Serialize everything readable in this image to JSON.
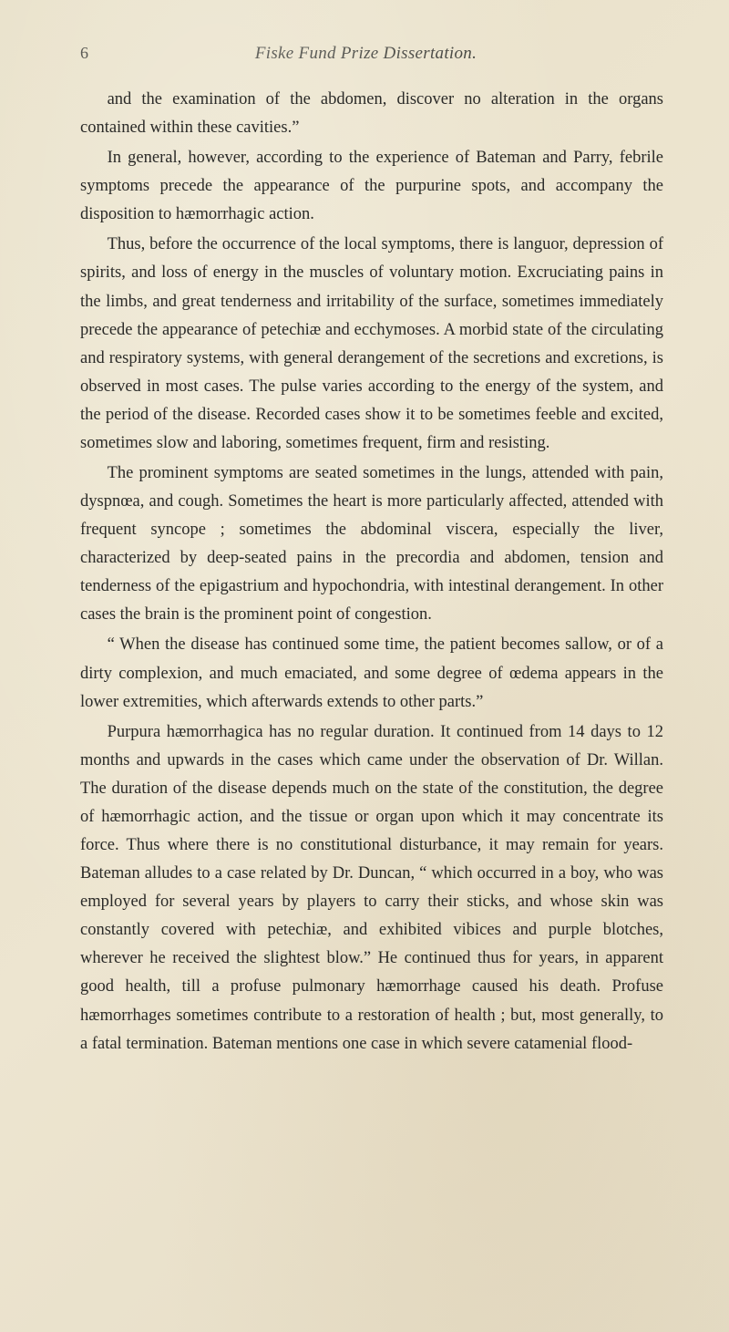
{
  "page": {
    "number": "6",
    "running_title": "Fiske Fund Prize Dissertation.",
    "background_color": "#e8e0c8",
    "text_color": "#2a2a28",
    "font_family": "Georgia, serif",
    "body_fontsize": 18.5,
    "title_fontsize": 19,
    "line_height": 1.68
  },
  "paragraphs": [
    "and the examination of the abdomen, discover no alteration in the organs contained within these cavities.”",
    "In general, however, according to the experience of Bateman and Parry, febrile symptoms precede the appearance of the purpurine spots, and accompany the disposition to hæmorrhagic action.",
    "Thus, before the occurrence of the local symptoms, there is languor, depression of spirits, and loss of energy in the muscles of voluntary motion. Excruciating pains in the limbs, and great tenderness and irritability of the surface, sometimes immediately precede the appearance of petechiæ and ecchymoses. A morbid state of the circulating and respiratory systems, with general derangement of the secretions and excretions, is observed in most cases. The pulse varies according to the energy of the system, and the period of the disease. Recorded cases show it to be sometimes feeble and excited, sometimes slow and laboring, sometimes frequent, firm and resisting.",
    "The prominent symptoms are seated sometimes in the lungs, attended with pain, dyspnœa, and cough. Sometimes the heart is more particularly affected, attended with frequent syncope ; sometimes the abdominal viscera, especially the liver, characterized by deep-seated pains in the precordia and abdomen, tension and tenderness of the epigastrium and hypochondria, with intestinal derangement. In other cases the brain is the prominent point of congestion.",
    "“ When the disease has continued some time, the patient becomes sallow, or of a dirty complexion, and much emaciated, and some degree of œdema appears in the lower extremities, which afterwards extends to other parts.”",
    "Purpura hæmorrhagica has no regular duration. It continued from 14 days to 12 months and upwards in the cases which came under the observation of Dr. Willan. The duration of the disease depends much on the state of the constitution, the degree of hæmorrhagic action, and the tissue or organ upon which it may concentrate its force. Thus where there is no constitutional disturbance, it may remain for years. Bateman alludes to a case related by Dr. Duncan, “ which occurred in a boy, who was employed for several years by players to carry their sticks, and whose skin was constantly covered with petechiæ, and exhibited vibices and purple blotches, wherever he received the slightest blow.” He continued thus for years, in apparent good health, till a profuse pulmonary hæmorrhage caused his death. Profuse hæmorrhages sometimes contribute to a restoration of health ; but, most generally, to a fatal termination. Bateman mentions one case in which severe catamenial flood-"
  ]
}
